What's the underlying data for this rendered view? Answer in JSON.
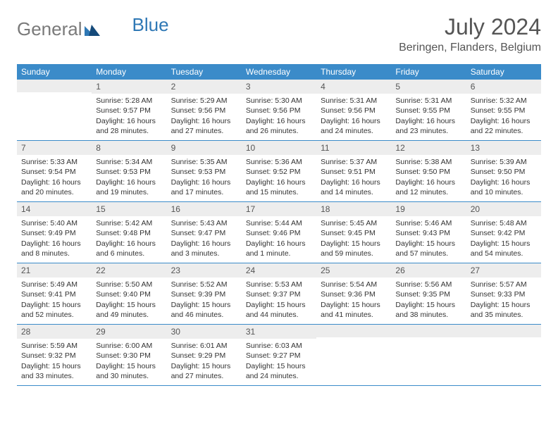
{
  "brand": {
    "word1": "General",
    "word2": "Blue"
  },
  "title": "July 2024",
  "location": "Beringen, Flanders, Belgium",
  "colors": {
    "header_blue": "#3b8bc9",
    "light_gray": "#ededed",
    "text": "#333333",
    "logo_gray": "#7a7a7a",
    "logo_blue": "#2f78b5"
  },
  "dow": [
    "Sunday",
    "Monday",
    "Tuesday",
    "Wednesday",
    "Thursday",
    "Friday",
    "Saturday"
  ],
  "weeks": [
    [
      {
        "n": "",
        "sunrise": "",
        "sunset": "",
        "daylight1": "",
        "daylight2": ""
      },
      {
        "n": "1",
        "sunrise": "Sunrise: 5:28 AM",
        "sunset": "Sunset: 9:57 PM",
        "daylight1": "Daylight: 16 hours",
        "daylight2": "and 28 minutes."
      },
      {
        "n": "2",
        "sunrise": "Sunrise: 5:29 AM",
        "sunset": "Sunset: 9:56 PM",
        "daylight1": "Daylight: 16 hours",
        "daylight2": "and 27 minutes."
      },
      {
        "n": "3",
        "sunrise": "Sunrise: 5:30 AM",
        "sunset": "Sunset: 9:56 PM",
        "daylight1": "Daylight: 16 hours",
        "daylight2": "and 26 minutes."
      },
      {
        "n": "4",
        "sunrise": "Sunrise: 5:31 AM",
        "sunset": "Sunset: 9:56 PM",
        "daylight1": "Daylight: 16 hours",
        "daylight2": "and 24 minutes."
      },
      {
        "n": "5",
        "sunrise": "Sunrise: 5:31 AM",
        "sunset": "Sunset: 9:55 PM",
        "daylight1": "Daylight: 16 hours",
        "daylight2": "and 23 minutes."
      },
      {
        "n": "6",
        "sunrise": "Sunrise: 5:32 AM",
        "sunset": "Sunset: 9:55 PM",
        "daylight1": "Daylight: 16 hours",
        "daylight2": "and 22 minutes."
      }
    ],
    [
      {
        "n": "7",
        "sunrise": "Sunrise: 5:33 AM",
        "sunset": "Sunset: 9:54 PM",
        "daylight1": "Daylight: 16 hours",
        "daylight2": "and 20 minutes."
      },
      {
        "n": "8",
        "sunrise": "Sunrise: 5:34 AM",
        "sunset": "Sunset: 9:53 PM",
        "daylight1": "Daylight: 16 hours",
        "daylight2": "and 19 minutes."
      },
      {
        "n": "9",
        "sunrise": "Sunrise: 5:35 AM",
        "sunset": "Sunset: 9:53 PM",
        "daylight1": "Daylight: 16 hours",
        "daylight2": "and 17 minutes."
      },
      {
        "n": "10",
        "sunrise": "Sunrise: 5:36 AM",
        "sunset": "Sunset: 9:52 PM",
        "daylight1": "Daylight: 16 hours",
        "daylight2": "and 15 minutes."
      },
      {
        "n": "11",
        "sunrise": "Sunrise: 5:37 AM",
        "sunset": "Sunset: 9:51 PM",
        "daylight1": "Daylight: 16 hours",
        "daylight2": "and 14 minutes."
      },
      {
        "n": "12",
        "sunrise": "Sunrise: 5:38 AM",
        "sunset": "Sunset: 9:50 PM",
        "daylight1": "Daylight: 16 hours",
        "daylight2": "and 12 minutes."
      },
      {
        "n": "13",
        "sunrise": "Sunrise: 5:39 AM",
        "sunset": "Sunset: 9:50 PM",
        "daylight1": "Daylight: 16 hours",
        "daylight2": "and 10 minutes."
      }
    ],
    [
      {
        "n": "14",
        "sunrise": "Sunrise: 5:40 AM",
        "sunset": "Sunset: 9:49 PM",
        "daylight1": "Daylight: 16 hours",
        "daylight2": "and 8 minutes."
      },
      {
        "n": "15",
        "sunrise": "Sunrise: 5:42 AM",
        "sunset": "Sunset: 9:48 PM",
        "daylight1": "Daylight: 16 hours",
        "daylight2": "and 6 minutes."
      },
      {
        "n": "16",
        "sunrise": "Sunrise: 5:43 AM",
        "sunset": "Sunset: 9:47 PM",
        "daylight1": "Daylight: 16 hours",
        "daylight2": "and 3 minutes."
      },
      {
        "n": "17",
        "sunrise": "Sunrise: 5:44 AM",
        "sunset": "Sunset: 9:46 PM",
        "daylight1": "Daylight: 16 hours",
        "daylight2": "and 1 minute."
      },
      {
        "n": "18",
        "sunrise": "Sunrise: 5:45 AM",
        "sunset": "Sunset: 9:45 PM",
        "daylight1": "Daylight: 15 hours",
        "daylight2": "and 59 minutes."
      },
      {
        "n": "19",
        "sunrise": "Sunrise: 5:46 AM",
        "sunset": "Sunset: 9:43 PM",
        "daylight1": "Daylight: 15 hours",
        "daylight2": "and 57 minutes."
      },
      {
        "n": "20",
        "sunrise": "Sunrise: 5:48 AM",
        "sunset": "Sunset: 9:42 PM",
        "daylight1": "Daylight: 15 hours",
        "daylight2": "and 54 minutes."
      }
    ],
    [
      {
        "n": "21",
        "sunrise": "Sunrise: 5:49 AM",
        "sunset": "Sunset: 9:41 PM",
        "daylight1": "Daylight: 15 hours",
        "daylight2": "and 52 minutes."
      },
      {
        "n": "22",
        "sunrise": "Sunrise: 5:50 AM",
        "sunset": "Sunset: 9:40 PM",
        "daylight1": "Daylight: 15 hours",
        "daylight2": "and 49 minutes."
      },
      {
        "n": "23",
        "sunrise": "Sunrise: 5:52 AM",
        "sunset": "Sunset: 9:39 PM",
        "daylight1": "Daylight: 15 hours",
        "daylight2": "and 46 minutes."
      },
      {
        "n": "24",
        "sunrise": "Sunrise: 5:53 AM",
        "sunset": "Sunset: 9:37 PM",
        "daylight1": "Daylight: 15 hours",
        "daylight2": "and 44 minutes."
      },
      {
        "n": "25",
        "sunrise": "Sunrise: 5:54 AM",
        "sunset": "Sunset: 9:36 PM",
        "daylight1": "Daylight: 15 hours",
        "daylight2": "and 41 minutes."
      },
      {
        "n": "26",
        "sunrise": "Sunrise: 5:56 AM",
        "sunset": "Sunset: 9:35 PM",
        "daylight1": "Daylight: 15 hours",
        "daylight2": "and 38 minutes."
      },
      {
        "n": "27",
        "sunrise": "Sunrise: 5:57 AM",
        "sunset": "Sunset: 9:33 PM",
        "daylight1": "Daylight: 15 hours",
        "daylight2": "and 35 minutes."
      }
    ],
    [
      {
        "n": "28",
        "sunrise": "Sunrise: 5:59 AM",
        "sunset": "Sunset: 9:32 PM",
        "daylight1": "Daylight: 15 hours",
        "daylight2": "and 33 minutes."
      },
      {
        "n": "29",
        "sunrise": "Sunrise: 6:00 AM",
        "sunset": "Sunset: 9:30 PM",
        "daylight1": "Daylight: 15 hours",
        "daylight2": "and 30 minutes."
      },
      {
        "n": "30",
        "sunrise": "Sunrise: 6:01 AM",
        "sunset": "Sunset: 9:29 PM",
        "daylight1": "Daylight: 15 hours",
        "daylight2": "and 27 minutes."
      },
      {
        "n": "31",
        "sunrise": "Sunrise: 6:03 AM",
        "sunset": "Sunset: 9:27 PM",
        "daylight1": "Daylight: 15 hours",
        "daylight2": "and 24 minutes."
      },
      {
        "n": "",
        "sunrise": "",
        "sunset": "",
        "daylight1": "",
        "daylight2": ""
      },
      {
        "n": "",
        "sunrise": "",
        "sunset": "",
        "daylight1": "",
        "daylight2": ""
      },
      {
        "n": "",
        "sunrise": "",
        "sunset": "",
        "daylight1": "",
        "daylight2": ""
      }
    ]
  ]
}
